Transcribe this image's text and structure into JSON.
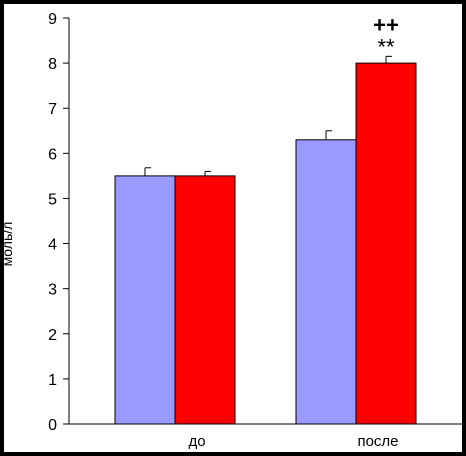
{
  "chart_data": {
    "type": "bar",
    "title": "",
    "xlabel": "",
    "ylabel": "моль/л",
    "categories": [
      "до",
      "после"
    ],
    "ylim": [
      0,
      9
    ],
    "yticks": [
      0,
      1,
      2,
      3,
      4,
      5,
      6,
      7,
      8,
      9
    ],
    "grid": false,
    "legend": "none",
    "series": [
      {
        "color": "#9999FF",
        "values": [
          5.5,
          6.3
        ],
        "errors": [
          0.18,
          0.2
        ]
      },
      {
        "color": "#FF0000",
        "values": [
          5.5,
          8.0
        ],
        "errors": [
          0.1,
          0.15
        ]
      }
    ],
    "annotations": [
      {
        "category": "после",
        "series_index": 1,
        "lines": [
          "++",
          "**"
        ]
      }
    ]
  }
}
